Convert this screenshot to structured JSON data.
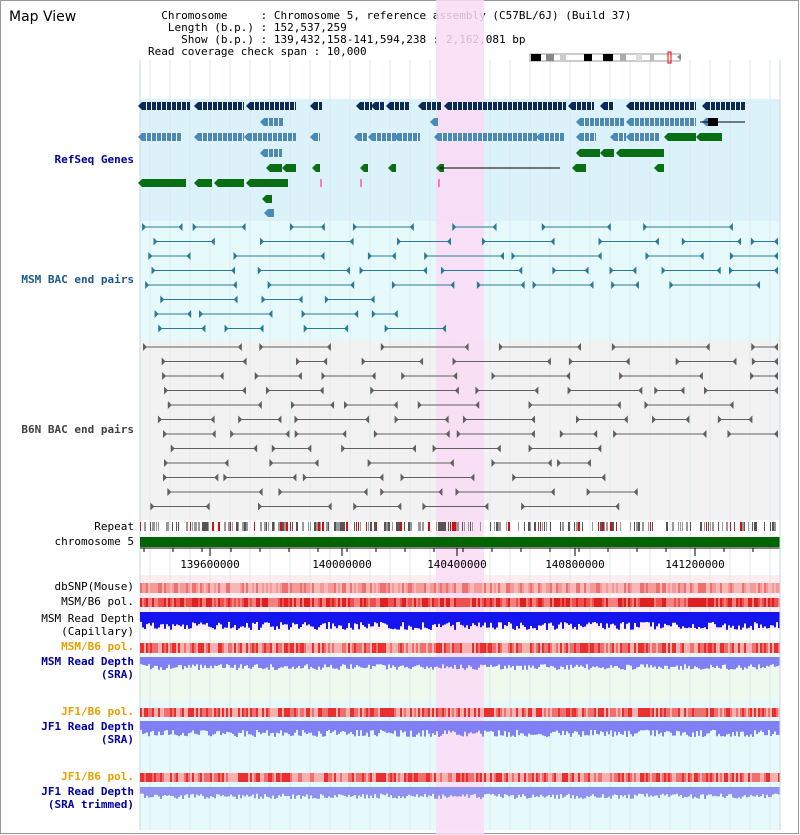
{
  "title": "Map View",
  "info": {
    "chromosome_label": "Chromosome",
    "chromosome_value": "Chromosome 5, reference assembly (C57BL/6J) (Build 37)",
    "length_label": "Length (b.p.)",
    "length_value": "152,537,259",
    "show_label": "Show (b.p.)",
    "show_value": "139,432,158-141,594,238 : 2,162,081 bp",
    "coverage_label": "Read coverage check span",
    "coverage_value": "10,000"
  },
  "tracks": {
    "refseq": "RefSeq Genes",
    "msm_bac": "MSM BAC end pairs",
    "b6n_bac": "B6N BAC end pairs",
    "repeat": "Repeat",
    "chromosome": "chromosome 5",
    "dbsnp": "dbSNP(Mouse)",
    "msm_pol_1": "MSM/B6 pol.",
    "msm_depth_cap_1": "MSM Read Depth",
    "msm_depth_cap_2": "(Capillary)",
    "msm_pol_2": "MSM/B6 pol.",
    "msm_depth_sra_1": "MSM Read Depth",
    "msm_depth_sra_2": "(SRA)",
    "jf1_pol_1": "JF1/B6 pol.",
    "jf1_depth_sra_1": "JF1 Read Depth",
    "jf1_depth_sra_2": "(SRA)",
    "jf1_pol_2": "JF1/B6 pol.",
    "jf1_depth_trim_1": "JF1 Read Depth",
    "jf1_depth_trim_2": "(SRA trimmed)"
  },
  "axis_ticks": [
    "139600000",
    "140000000",
    "140400000",
    "140800000",
    "141200000"
  ],
  "colors": {
    "refseq_bg": "#dcf2fa",
    "msm_bg": "#e6fafc",
    "b6n_bg": "#f2f2f2",
    "highlight": "#fadcf5",
    "gene_dark": "#0a2a5a",
    "gene_mid": "#4a8ab8",
    "gene_green": "#0a6e14",
    "msm_line": "#2a7a9a",
    "b6n_line": "#606060",
    "chrom_bar": "#006400",
    "depth_dark": "#1414ee",
    "depth_light": "#8080f4",
    "pol_red": "#e83a3a",
    "label_blue": "#0000a0",
    "label_orange": "#e8a000"
  }
}
